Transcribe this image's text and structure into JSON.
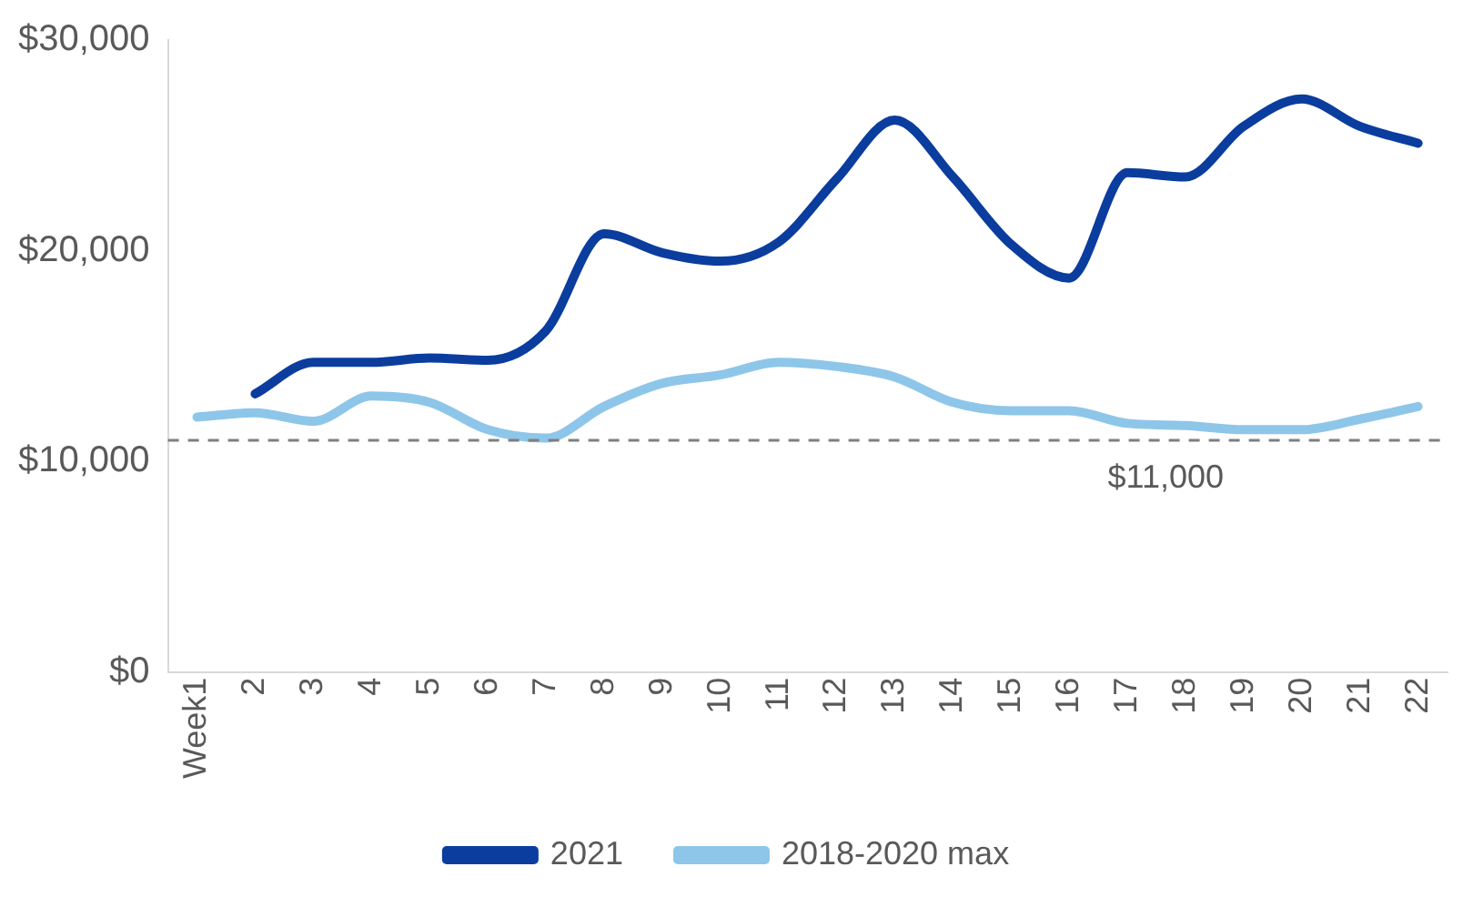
{
  "chart_data": {
    "type": "line",
    "categories": [
      "Week1",
      "2",
      "3",
      "4",
      "5",
      "6",
      "7",
      "8",
      "9",
      "10",
      "11",
      "12",
      "13",
      "14",
      "15",
      "16",
      "17",
      "18",
      "19",
      "20",
      "21",
      "22"
    ],
    "series": [
      {
        "name": "2021",
        "color": "#0a3d9e",
        "values": [
          null,
          13200,
          14700,
          14700,
          14900,
          14800,
          16200,
          20800,
          19900,
          19500,
          20400,
          23400,
          26200,
          23500,
          20300,
          18700,
          23700,
          23500,
          25900,
          27200,
          25900,
          25100
        ]
      },
      {
        "name": "2018-2020 max",
        "color": "#8ec6ea",
        "values": [
          12100,
          12300,
          11900,
          13100,
          12800,
          11500,
          11100,
          12600,
          13700,
          14100,
          14700,
          14500,
          14000,
          12800,
          12400,
          12400,
          11800,
          11700,
          11500,
          11500,
          12000,
          12600
        ]
      }
    ],
    "ylim": [
      0,
      30000
    ],
    "yticks": [
      {
        "value": 0,
        "label": "$0"
      },
      {
        "value": 10000,
        "label": "$10,000"
      },
      {
        "value": 20000,
        "label": "$20,000"
      },
      {
        "value": 30000,
        "label": "$30,000"
      }
    ],
    "ref_lines": [
      {
        "axis": "y",
        "value": 11000,
        "label": "$11,000",
        "color": "#7f7f7f",
        "line_style": "dashed"
      }
    ],
    "grid": false,
    "legend": "bottom",
    "marker": "none",
    "line_style": "solid"
  }
}
